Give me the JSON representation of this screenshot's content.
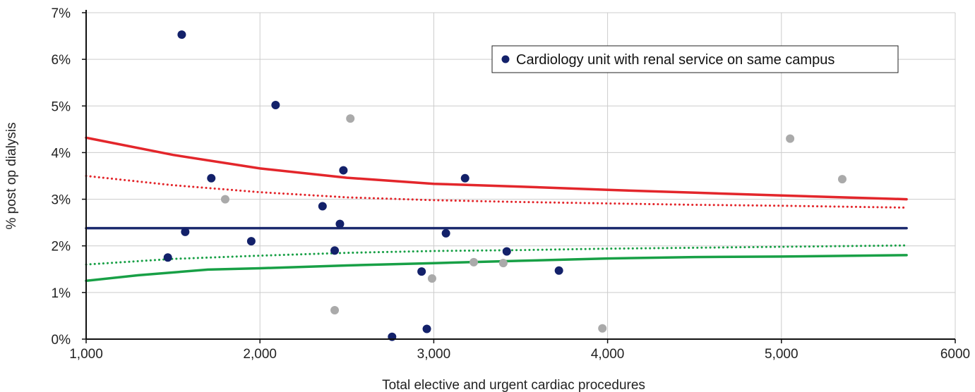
{
  "chart_data": {
    "type": "scatter",
    "title": "",
    "xlabel": "Total elective and urgent cardiac procedures",
    "ylabel": "% post op dialysis",
    "xlim": [
      1000,
      6000
    ],
    "ylim": [
      0,
      7
    ],
    "x_ticks": [
      {
        "value": 1000,
        "label": "1,000"
      },
      {
        "value": 2000,
        "label": "2,000"
      },
      {
        "value": 3000,
        "label": "3,000"
      },
      {
        "value": 4000,
        "label": "4,000"
      },
      {
        "value": 5000,
        "label": "5,000"
      },
      {
        "value": 6000,
        "label": "6000"
      }
    ],
    "y_ticks": [
      {
        "value": 0,
        "label": "0%"
      },
      {
        "value": 1,
        "label": "1%"
      },
      {
        "value": 2,
        "label": "2%"
      },
      {
        "value": 3,
        "label": "3%"
      },
      {
        "value": 4,
        "label": "4%"
      },
      {
        "value": 5,
        "label": "5%"
      },
      {
        "value": 6,
        "label": "6%"
      },
      {
        "value": 7,
        "label": "7%"
      }
    ],
    "grid": true,
    "legend": {
      "placement": "top-right",
      "entry": "Cardiology unit with renal service on same campus"
    },
    "series": [
      {
        "name": "Cardiology unit with renal service on same campus",
        "kind": "points",
        "color": "#13216a",
        "points": [
          [
            1550,
            6.53
          ],
          [
            1470,
            1.75
          ],
          [
            1570,
            2.3
          ],
          [
            1720,
            3.45
          ],
          [
            1950,
            2.1
          ],
          [
            2090,
            5.02
          ],
          [
            2360,
            2.85
          ],
          [
            2430,
            1.9
          ],
          [
            2460,
            2.47
          ],
          [
            2480,
            3.62
          ],
          [
            2760,
            0.05
          ],
          [
            2930,
            1.45
          ],
          [
            2960,
            0.22
          ],
          [
            3070,
            2.27
          ],
          [
            3180,
            3.45
          ],
          [
            3420,
            1.88
          ],
          [
            3720,
            1.47
          ]
        ]
      },
      {
        "kind": "points",
        "color": "#aaaaaa",
        "points": [
          [
            1800,
            3.0
          ],
          [
            2430,
            0.62
          ],
          [
            2520,
            4.73
          ],
          [
            2990,
            1.3
          ],
          [
            3230,
            1.65
          ],
          [
            3400,
            1.63
          ],
          [
            3970,
            0.23
          ],
          [
            5050,
            4.3
          ],
          [
            5350,
            3.43
          ]
        ]
      },
      {
        "kind": "line",
        "color": "#1b2a6e",
        "style": "solid",
        "points": [
          [
            1000,
            2.38
          ],
          [
            5720,
            2.38
          ]
        ]
      },
      {
        "kind": "line",
        "color": "#e3262b",
        "style": "solid",
        "points": [
          [
            1000,
            4.32
          ],
          [
            1500,
            3.95
          ],
          [
            2000,
            3.66
          ],
          [
            2500,
            3.46
          ],
          [
            3000,
            3.33
          ],
          [
            3500,
            3.27
          ],
          [
            4000,
            3.2
          ],
          [
            4500,
            3.14
          ],
          [
            5000,
            3.08
          ],
          [
            5720,
            3.0
          ]
        ]
      },
      {
        "kind": "line",
        "color": "#e3262b",
        "style": "dotted",
        "points": [
          [
            1000,
            3.5
          ],
          [
            1500,
            3.3
          ],
          [
            2000,
            3.15
          ],
          [
            2500,
            3.04
          ],
          [
            3000,
            2.98
          ],
          [
            3500,
            2.94
          ],
          [
            4000,
            2.91
          ],
          [
            4500,
            2.88
          ],
          [
            5000,
            2.86
          ],
          [
            5720,
            2.82
          ]
        ]
      },
      {
        "kind": "line",
        "color": "#18a046",
        "style": "solid",
        "points": [
          [
            1000,
            1.25
          ],
          [
            1300,
            1.37
          ],
          [
            1700,
            1.49
          ],
          [
            2000,
            1.52
          ],
          [
            2500,
            1.58
          ],
          [
            3000,
            1.63
          ],
          [
            3500,
            1.68
          ],
          [
            4000,
            1.73
          ],
          [
            4500,
            1.76
          ],
          [
            5000,
            1.77
          ],
          [
            5720,
            1.8
          ]
        ]
      },
      {
        "kind": "line",
        "color": "#18a046",
        "style": "dotted",
        "points": [
          [
            1000,
            1.6
          ],
          [
            1500,
            1.72
          ],
          [
            2000,
            1.79
          ],
          [
            2500,
            1.85
          ],
          [
            3000,
            1.89
          ],
          [
            3500,
            1.91
          ],
          [
            4000,
            1.94
          ],
          [
            4500,
            1.96
          ],
          [
            5000,
            1.98
          ],
          [
            5720,
            2.01
          ]
        ]
      }
    ]
  }
}
